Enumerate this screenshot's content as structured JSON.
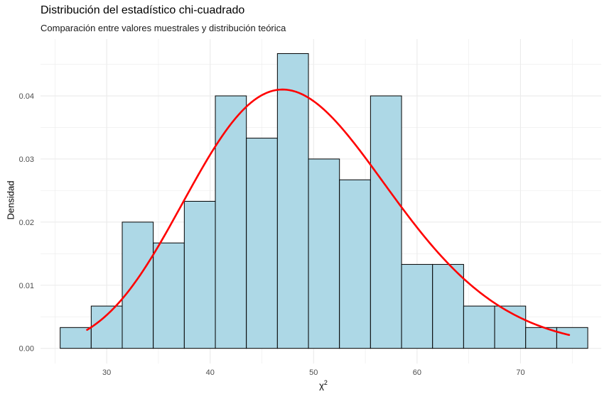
{
  "chart_data": {
    "type": "bar",
    "title": "Distribución del estadístico chi-cuadrado",
    "subtitle": "Comparación entre valores muestrales y distribución teórica",
    "xlabel": "χ",
    "xlabel_superscript": "2",
    "ylabel": "Densidad",
    "xlim": [
      23.6,
      77.8
    ],
    "ylim": [
      -0.0024,
      0.049
    ],
    "x_ticks": [
      30,
      40,
      50,
      60,
      70
    ],
    "x_tick_labels": [
      "30",
      "40",
      "50",
      "60",
      "70"
    ],
    "y_ticks": [
      0.0,
      0.01,
      0.02,
      0.03,
      0.04
    ],
    "y_tick_labels": [
      "0.00",
      "0.01",
      "0.02",
      "0.03",
      "0.04"
    ],
    "grid": true,
    "bin_width": 3,
    "bins": [
      {
        "x0": 25.5,
        "x1": 28.5,
        "density": 0.0033
      },
      {
        "x0": 28.5,
        "x1": 31.5,
        "density": 0.0067
      },
      {
        "x0": 31.5,
        "x1": 34.5,
        "density": 0.02
      },
      {
        "x0": 34.5,
        "x1": 37.5,
        "density": 0.0167
      },
      {
        "x0": 37.5,
        "x1": 40.5,
        "density": 0.0233
      },
      {
        "x0": 40.5,
        "x1": 43.5,
        "density": 0.04
      },
      {
        "x0": 43.5,
        "x1": 46.5,
        "density": 0.0333
      },
      {
        "x0": 46.5,
        "x1": 49.5,
        "density": 0.0467
      },
      {
        "x0": 49.5,
        "x1": 52.5,
        "density": 0.03
      },
      {
        "x0": 52.5,
        "x1": 55.5,
        "density": 0.0267
      },
      {
        "x0": 55.5,
        "x1": 58.5,
        "density": 0.04
      },
      {
        "x0": 58.5,
        "x1": 61.5,
        "density": 0.0133
      },
      {
        "x0": 61.5,
        "x1": 64.5,
        "density": 0.0133
      },
      {
        "x0": 64.5,
        "x1": 67.5,
        "density": 0.0067
      },
      {
        "x0": 67.5,
        "x1": 70.5,
        "density": 0.0067
      },
      {
        "x0": 70.5,
        "x1": 73.5,
        "density": 0.0033
      },
      {
        "x0": 73.5,
        "x1": 76.5,
        "density": 0.0033
      }
    ],
    "curve": {
      "name": "distribución teórica",
      "distribution": "chi-squared",
      "df": 49,
      "x_range": [
        28.1,
        74.7
      ],
      "color": "#ff0000"
    },
    "colors": {
      "bar_fill": "#add8e6",
      "bar_stroke": "#000000",
      "grid": "#ebebeb",
      "tick_text": "#4d4d4d"
    }
  }
}
